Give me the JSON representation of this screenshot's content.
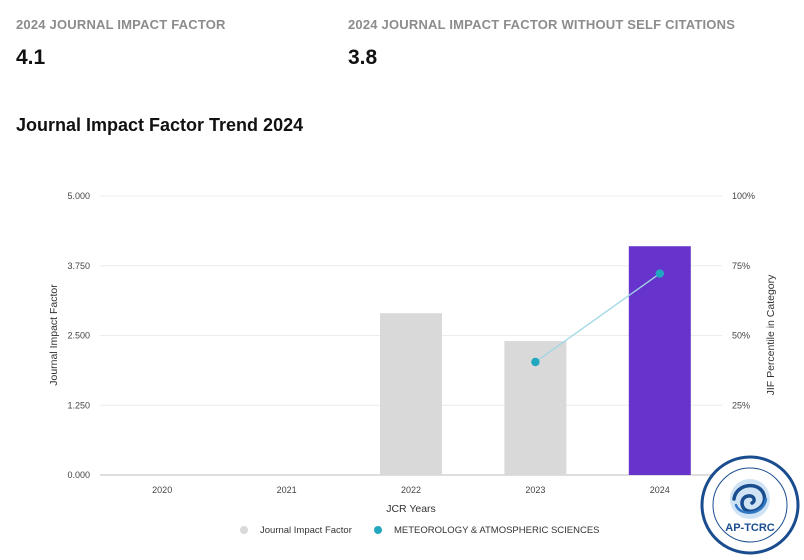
{
  "metrics": [
    {
      "label": "2024 JOURNAL IMPACT FACTOR",
      "value": "4.1"
    },
    {
      "label": "2024 JOURNAL IMPACT FACTOR WITHOUT SELF CITATIONS",
      "value": "3.8"
    }
  ],
  "section_title": "Journal Impact Factor Trend 2024",
  "chart_data": {
    "type": "bar",
    "categories": [
      "2020",
      "2021",
      "2022",
      "2023",
      "2024"
    ],
    "xlabel": "JCR Years",
    "ylabel": "Journal Impact Factor",
    "y2label": "JIF Percentile in Category",
    "ylim": [
      0,
      5
    ],
    "y_ticks": [
      "0.000",
      "1.250",
      "2.500",
      "3.750",
      "5.000"
    ],
    "y2lim": [
      0,
      100
    ],
    "y2_ticks": [
      "25%",
      "50%",
      "75%",
      "100%"
    ],
    "grid": true,
    "legend_position": "bottom",
    "series": [
      {
        "name": "Journal Impact Factor",
        "kind": "bar",
        "values": [
          null,
          null,
          2.9,
          2.4,
          4.1
        ],
        "colors": [
          "#d9d9d9",
          "#d9d9d9",
          "#d9d9d9",
          "#d9d9d9",
          "#6633cc"
        ]
      },
      {
        "name": "METEOROLOGY & ATMOSPHERIC SCIENCES",
        "kind": "line",
        "axis": "y2",
        "values": [
          null,
          null,
          null,
          40.5,
          72.2
        ],
        "color": "#22a7c1",
        "line_color": "#9fd6e3"
      }
    ],
    "legend_colors": [
      "#d9d9d9",
      "#22a7c1"
    ]
  },
  "logo": {
    "text": "AP-TCRC",
    "icon": "ap-tcrc-logo-icon",
    "color": "#1a4d8f"
  }
}
